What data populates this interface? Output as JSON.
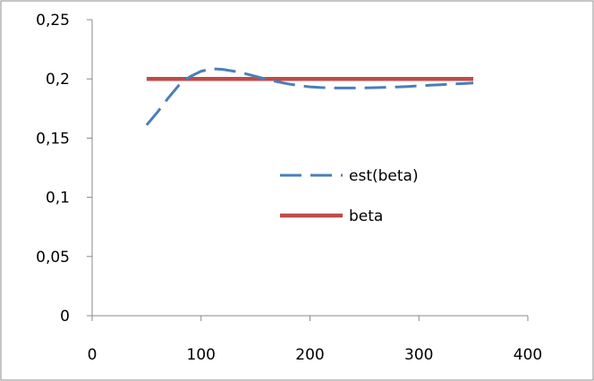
{
  "chart_data": {
    "type": "line",
    "title": "",
    "xlabel": "",
    "ylabel": "",
    "xlim": [
      0,
      400
    ],
    "ylim": [
      0,
      0.25
    ],
    "xticks": [
      {
        "value": 0,
        "label": "0"
      },
      {
        "value": 100,
        "label": "100"
      },
      {
        "value": 200,
        "label": "200"
      },
      {
        "value": 300,
        "label": "300"
      },
      {
        "value": 400,
        "label": "400"
      }
    ],
    "yticks": [
      {
        "value": 0,
        "label": "0"
      },
      {
        "value": 0.05,
        "label": "0,05"
      },
      {
        "value": 0.1,
        "label": "0,1"
      },
      {
        "value": 0.15,
        "label": "0,15"
      },
      {
        "value": 0.2,
        "label": "0,2"
      },
      {
        "value": 0.25,
        "label": "0,25"
      }
    ],
    "grid": false,
    "legend_position": "center-right",
    "series": [
      {
        "name": "est(beta)",
        "color": "#4a7ebb",
        "dash": "dashed",
        "x": [
          50,
          60,
          70,
          80,
          90,
          100,
          110,
          120,
          130,
          140,
          150,
          160,
          170,
          180,
          190,
          200,
          210,
          220,
          230,
          240,
          250,
          260,
          270,
          280,
          290,
          300,
          310,
          320,
          330,
          340,
          350
        ],
        "y": [
          0.161,
          0.172,
          0.184,
          0.195,
          0.202,
          0.2065,
          0.2085,
          0.208,
          0.2065,
          0.2045,
          0.2022,
          0.1998,
          0.1976,
          0.1958,
          0.1943,
          0.1933,
          0.1927,
          0.1924,
          0.1923,
          0.1923,
          0.1924,
          0.1926,
          0.1929,
          0.1932,
          0.1936,
          0.1941,
          0.1946,
          0.1951,
          0.1956,
          0.196,
          0.1965
        ]
      },
      {
        "name": "beta",
        "color": "#be4b48",
        "dash": "solid",
        "x": [
          50,
          350
        ],
        "y": [
          0.2,
          0.2
        ]
      }
    ]
  }
}
